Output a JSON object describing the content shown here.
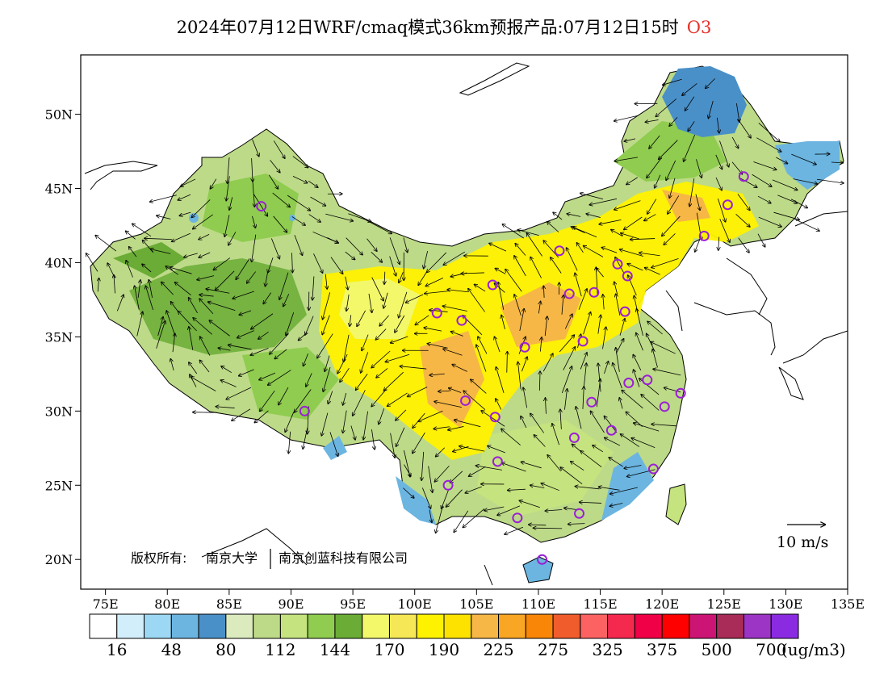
{
  "title": {
    "text": "2024年07月12日WRF/cmaq模式36km预报产品:07月12日15时",
    "pollutant": "O3"
  },
  "map": {
    "lon_ticks": [
      "75E",
      "80E",
      "85E",
      "90E",
      "95E",
      "100E",
      "105E",
      "110E",
      "115E",
      "120E",
      "125E",
      "130E",
      "135E"
    ],
    "lat_ticks": [
      "50N",
      "45N",
      "40N",
      "35N",
      "30N",
      "25N",
      "20N"
    ],
    "lon_range": [
      73,
      135
    ],
    "lat_range": [
      18,
      54
    ]
  },
  "copyright": {
    "label": "版权所有:",
    "org1": "南京大学",
    "org2": "南京创蓝科技有限公司"
  },
  "wind_reference": {
    "label": "10 m/s"
  },
  "colorbar": {
    "colors": [
      "#ffffff",
      "#d2eefb",
      "#9cd8f4",
      "#6bb5e0",
      "#4a90c8",
      "#dcebbe",
      "#bdda88",
      "#c5e37f",
      "#8fcc4f",
      "#6aac35",
      "#f2f86a",
      "#f5e755",
      "#fff200",
      "#fde200",
      "#f6b746",
      "#f8a623",
      "#f98607",
      "#f05c2c",
      "#fc6262",
      "#f5284e",
      "#f00046",
      "#ff0000",
      "#cc1474",
      "#a82c57",
      "#9c35c5",
      "#8a2be2"
    ],
    "labels": [
      "16",
      "48",
      "80",
      "112",
      "144",
      "170",
      "190",
      "225",
      "275",
      "325",
      "375",
      "500",
      "700"
    ],
    "unit": "(ug/m3)"
  },
  "stations": [
    {
      "lon": 87.6,
      "lat": 43.8
    },
    {
      "lon": 91.1,
      "lat": 30.0
    },
    {
      "lon": 101.8,
      "lat": 36.6
    },
    {
      "lon": 103.8,
      "lat": 36.1
    },
    {
      "lon": 106.3,
      "lat": 38.5
    },
    {
      "lon": 111.7,
      "lat": 40.8
    },
    {
      "lon": 112.5,
      "lat": 37.9
    },
    {
      "lon": 114.5,
      "lat": 38.0
    },
    {
      "lon": 116.4,
      "lat": 39.9
    },
    {
      "lon": 117.2,
      "lat": 39.1
    },
    {
      "lon": 117.0,
      "lat": 36.7
    },
    {
      "lon": 113.6,
      "lat": 34.7
    },
    {
      "lon": 108.9,
      "lat": 34.3
    },
    {
      "lon": 104.1,
      "lat": 30.7
    },
    {
      "lon": 106.5,
      "lat": 29.6
    },
    {
      "lon": 114.3,
      "lat": 30.6
    },
    {
      "lon": 112.9,
      "lat": 28.2
    },
    {
      "lon": 115.9,
      "lat": 28.7
    },
    {
      "lon": 117.3,
      "lat": 31.9
    },
    {
      "lon": 118.8,
      "lat": 32.1
    },
    {
      "lon": 120.2,
      "lat": 30.3
    },
    {
      "lon": 121.5,
      "lat": 31.2
    },
    {
      "lon": 119.3,
      "lat": 26.1
    },
    {
      "lon": 113.3,
      "lat": 23.1
    },
    {
      "lon": 108.3,
      "lat": 22.8
    },
    {
      "lon": 110.3,
      "lat": 20.0
    },
    {
      "lon": 106.7,
      "lat": 26.6
    },
    {
      "lon": 102.7,
      "lat": 25.0
    },
    {
      "lon": 123.4,
      "lat": 41.8
    },
    {
      "lon": 125.3,
      "lat": 43.9
    },
    {
      "lon": 126.6,
      "lat": 45.8
    }
  ]
}
